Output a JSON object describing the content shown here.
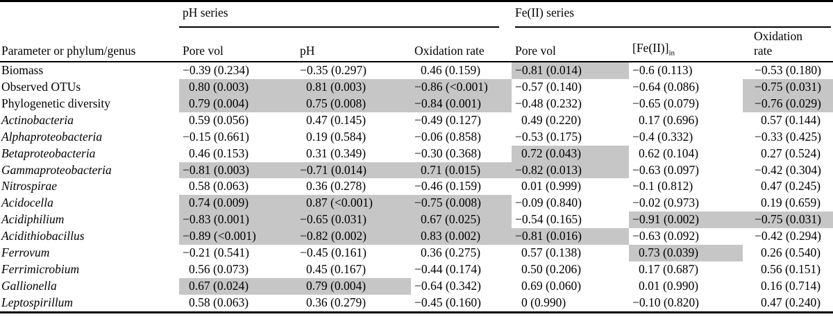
{
  "colors": {
    "highlight": "#c6c6c6",
    "rule": "#000000",
    "text": "#000000",
    "background": "#ffffff"
  },
  "header": {
    "row_header": "Parameter or phylum/genus",
    "groups": [
      {
        "label": "pH series",
        "columns": [
          {
            "text": "Pore vol",
            "sub": ""
          },
          {
            "text": "pH",
            "sub": ""
          },
          {
            "text": "Oxidation rate",
            "sub": ""
          }
        ]
      },
      {
        "label": "Fe(II) series",
        "columns": [
          {
            "text": "Pore vol",
            "sub": ""
          },
          {
            "text": "[Fe(II)]",
            "sub": "in"
          },
          {
            "text": "Oxidation rate",
            "sub": ""
          }
        ]
      }
    ]
  },
  "rows": [
    {
      "label": "Biomass",
      "italic": false,
      "cells": [
        {
          "v": "−0.39 (0.234)",
          "hl": false
        },
        {
          "v": "−0.35 (0.297)",
          "hl": false
        },
        {
          "v": "0.46 (0.159)",
          "hl": false
        },
        {
          "v": "−0.81 (0.014)",
          "hl": true
        },
        {
          "v": "−0.6 (0.113)",
          "hl": false
        },
        {
          "v": "−0.53 (0.180)",
          "hl": false
        }
      ]
    },
    {
      "label": "Observed OTUs",
      "italic": false,
      "cells": [
        {
          "v": "0.80 (0.003)",
          "hl": true
        },
        {
          "v": "0.81 (0.003)",
          "hl": true
        },
        {
          "v": "−0.86 (<0.001)",
          "hl": true
        },
        {
          "v": "−0.57 (0.140)",
          "hl": false
        },
        {
          "v": "−0.64 (0.086)",
          "hl": false
        },
        {
          "v": "−0.75 (0.031)",
          "hl": true
        }
      ]
    },
    {
      "label": "Phylogenetic diversity",
      "italic": false,
      "cells": [
        {
          "v": "0.79 (0.004)",
          "hl": true
        },
        {
          "v": "0.75 (0.008)",
          "hl": true
        },
        {
          "v": "−0.84 (0.001)",
          "hl": true
        },
        {
          "v": "−0.48 (0.232)",
          "hl": false
        },
        {
          "v": "−0.65 (0.079)",
          "hl": false
        },
        {
          "v": "−0.76 (0.029)",
          "hl": true
        }
      ]
    },
    {
      "label": "Actinobacteria",
      "italic": true,
      "cells": [
        {
          "v": "0.59 (0.056)",
          "hl": false
        },
        {
          "v": "0.47 (0.145)",
          "hl": false
        },
        {
          "v": "−0.49 (0.127)",
          "hl": false
        },
        {
          "v": "0.49 (0.220)",
          "hl": false
        },
        {
          "v": "0.17 (0.696)",
          "hl": false
        },
        {
          "v": "0.57 (0.144)",
          "hl": false
        }
      ]
    },
    {
      "label": "Alphaproteobacteria",
      "italic": true,
      "cells": [
        {
          "v": "−0.15 (0.661)",
          "hl": false
        },
        {
          "v": "0.19 (0.584)",
          "hl": false
        },
        {
          "v": "−0.06 (0.858)",
          "hl": false
        },
        {
          "v": "−0.53 (0.175)",
          "hl": false
        },
        {
          "v": "−0.4 (0.332)",
          "hl": false
        },
        {
          "v": "−0.33 (0.425)",
          "hl": false
        }
      ]
    },
    {
      "label": "Betaproteobacteria",
      "italic": true,
      "cells": [
        {
          "v": "0.46 (0.153)",
          "hl": false
        },
        {
          "v": "0.31 (0.349)",
          "hl": false
        },
        {
          "v": "−0.30 (0.368)",
          "hl": false
        },
        {
          "v": "0.72 (0.043)",
          "hl": true
        },
        {
          "v": "0.62 (0.104)",
          "hl": false
        },
        {
          "v": "0.27 (0.524)",
          "hl": false
        }
      ]
    },
    {
      "label": "Gammaproteobacteria",
      "italic": true,
      "cells": [
        {
          "v": "−0.81 (0.003)",
          "hl": true
        },
        {
          "v": "−0.71 (0.014)",
          "hl": true
        },
        {
          "v": "0.71 (0.015)",
          "hl": true
        },
        {
          "v": "−0.82 (0.013)",
          "hl": true
        },
        {
          "v": "−0.63 (0.097)",
          "hl": false
        },
        {
          "v": "−0.42 (0.304)",
          "hl": false
        }
      ]
    },
    {
      "label": "Nitrospirae",
      "italic": true,
      "cells": [
        {
          "v": "0.58 (0.063)",
          "hl": false
        },
        {
          "v": "0.36 (0.278)",
          "hl": false
        },
        {
          "v": "−0.46 (0.159)",
          "hl": false
        },
        {
          "v": "0.01 (0.999)",
          "hl": false
        },
        {
          "v": "−0.1 (0.812)",
          "hl": false
        },
        {
          "v": "0.47 (0.245)",
          "hl": false
        }
      ]
    },
    {
      "label": "Acidocella",
      "italic": true,
      "cells": [
        {
          "v": "0.74 (0.009)",
          "hl": true
        },
        {
          "v": "0.87 (<0.001)",
          "hl": true
        },
        {
          "v": "−0.75 (0.008)",
          "hl": true
        },
        {
          "v": "−0.09 (0.840)",
          "hl": false
        },
        {
          "v": "−0.02 (0.973)",
          "hl": false
        },
        {
          "v": "0.19 (0.659)",
          "hl": false
        }
      ]
    },
    {
      "label": "Acidiphilium",
      "italic": true,
      "cells": [
        {
          "v": "−0.83 (0.001)",
          "hl": true
        },
        {
          "v": "−0.65 (0.031)",
          "hl": true
        },
        {
          "v": "0.67 (0.025)",
          "hl": true
        },
        {
          "v": "−0.54 (0.165)",
          "hl": false
        },
        {
          "v": "−0.91 (0.002)",
          "hl": true
        },
        {
          "v": "−0.75 (0.031)",
          "hl": true
        }
      ]
    },
    {
      "label": "Acidithiobacillus",
      "italic": true,
      "cells": [
        {
          "v": "−0.89 (<0.001)",
          "hl": true
        },
        {
          "v": "−0.82 (0.002)",
          "hl": true
        },
        {
          "v": "0.83 (0.002)",
          "hl": true
        },
        {
          "v": "−0.81 (0.016)",
          "hl": true
        },
        {
          "v": "−0.63 (0.092)",
          "hl": false
        },
        {
          "v": "−0.42 (0.294)",
          "hl": false
        }
      ]
    },
    {
      "label": "Ferrovum",
      "italic": true,
      "cells": [
        {
          "v": "−0.21 (0.541)",
          "hl": false
        },
        {
          "v": "−0.45 (0.161)",
          "hl": false
        },
        {
          "v": "0.36 (0.275)",
          "hl": false
        },
        {
          "v": "0.57 (0.138)",
          "hl": false
        },
        {
          "v": "0.73 (0.039)",
          "hl": true
        },
        {
          "v": "0.26 (0.540)",
          "hl": false
        }
      ]
    },
    {
      "label": "Ferrimicrobium",
      "italic": true,
      "cells": [
        {
          "v": "0.56 (0.073)",
          "hl": false
        },
        {
          "v": "0.45 (0.167)",
          "hl": false
        },
        {
          "v": "−0.44 (0.174)",
          "hl": false
        },
        {
          "v": "0.50 (0.206)",
          "hl": false
        },
        {
          "v": "0.17 (0.687)",
          "hl": false
        },
        {
          "v": "0.56 (0.151)",
          "hl": false
        }
      ]
    },
    {
      "label": "Gallionella",
      "italic": true,
      "cells": [
        {
          "v": "0.67 (0.024)",
          "hl": true
        },
        {
          "v": "0.79 (0.004)",
          "hl": true
        },
        {
          "v": "−0.64 (0.342)",
          "hl": false
        },
        {
          "v": "0.69 (0.060)",
          "hl": false
        },
        {
          "v": "0.01 (0.990)",
          "hl": false
        },
        {
          "v": "0.16 (0.714)",
          "hl": false
        }
      ]
    },
    {
      "label": "Leptospirillum",
      "italic": true,
      "cells": [
        {
          "v": "0.58 (0.063)",
          "hl": false
        },
        {
          "v": "0.36 (0.279)",
          "hl": false
        },
        {
          "v": "−0.45 (0.160)",
          "hl": false
        },
        {
          "v": "0 (0.990)",
          "hl": false
        },
        {
          "v": "−0.10 (0.820)",
          "hl": false
        },
        {
          "v": "0.47 (0.240)",
          "hl": false
        }
      ]
    }
  ]
}
